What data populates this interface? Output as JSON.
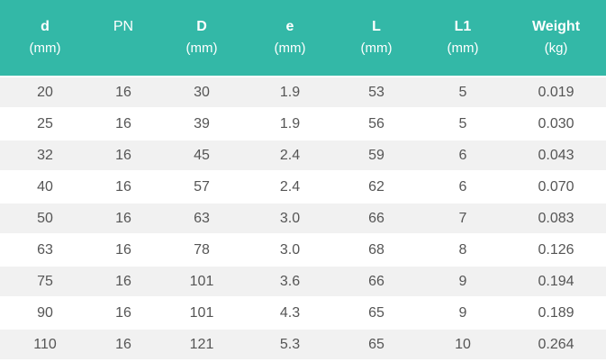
{
  "table": {
    "headers": [
      {
        "label": "d",
        "unit": "(mm)",
        "bold": true
      },
      {
        "label": "PN",
        "unit": "",
        "bold": false
      },
      {
        "label": "D",
        "unit": "(mm)",
        "bold": true
      },
      {
        "label": "e",
        "unit": "(mm)",
        "bold": true
      },
      {
        "label": "L",
        "unit": "(mm)",
        "bold": true
      },
      {
        "label": "L1",
        "unit": "(mm)",
        "bold": true
      },
      {
        "label": "Weight",
        "unit": "(kg)",
        "bold": true
      }
    ],
    "rows": [
      [
        "20",
        "16",
        "30",
        "1.9",
        "53",
        "5",
        "0.019"
      ],
      [
        "25",
        "16",
        "39",
        "1.9",
        "56",
        "5",
        "0.030"
      ],
      [
        "32",
        "16",
        "45",
        "2.4",
        "59",
        "6",
        "0.043"
      ],
      [
        "40",
        "16",
        "57",
        "2.4",
        "62",
        "6",
        "0.070"
      ],
      [
        "50",
        "16",
        "63",
        "3.0",
        "66",
        "7",
        "0.083"
      ],
      [
        "63",
        "16",
        "78",
        "3.0",
        "68",
        "8",
        "0.126"
      ],
      [
        "75",
        "16",
        "101",
        "3.6",
        "66",
        "9",
        "0.194"
      ],
      [
        "90",
        "16",
        "101",
        "4.3",
        "65",
        "9",
        "0.189"
      ],
      [
        "110",
        "16",
        "121",
        "5.3",
        "65",
        "10",
        "0.264"
      ]
    ]
  },
  "colors": {
    "header_background": "#33b8a7",
    "header_text": "#ffffff",
    "row_stripe": "#f1f1f1",
    "row_plain": "#ffffff",
    "cell_text": "#555555"
  }
}
